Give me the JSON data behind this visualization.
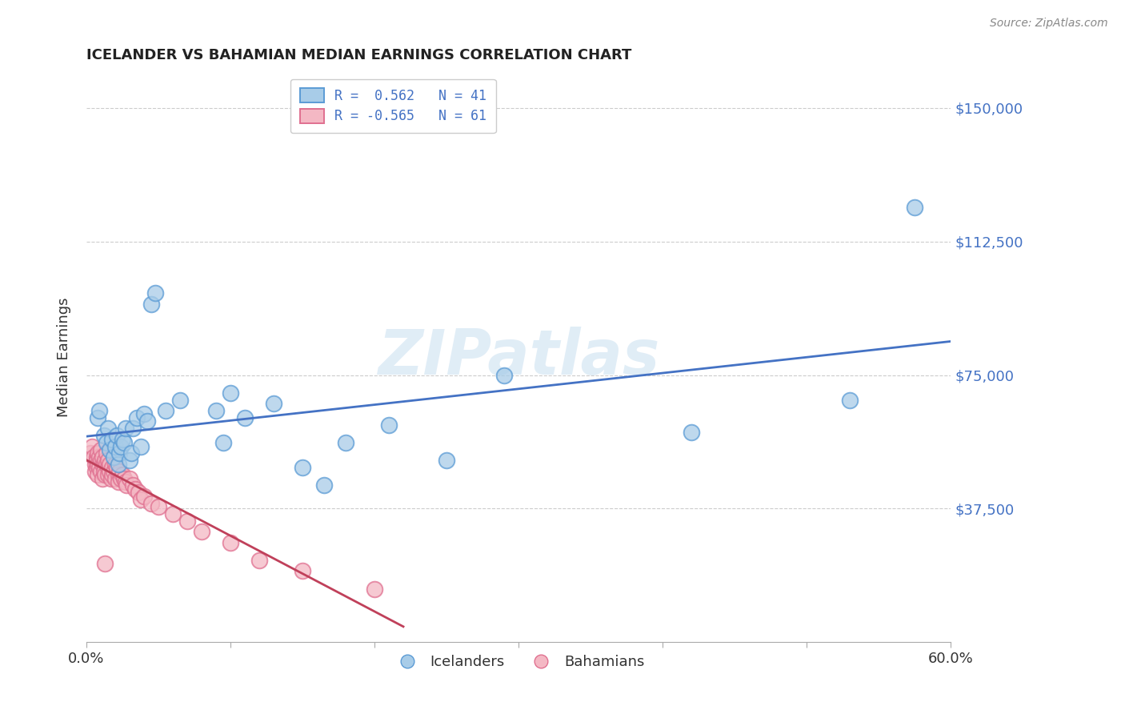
{
  "title": "ICELANDER VS BAHAMIAN MEDIAN EARNINGS CORRELATION CHART",
  "source": "Source: ZipAtlas.com",
  "ylabel": "Median Earnings",
  "ytick_labels": [
    "$37,500",
    "$75,000",
    "$112,500",
    "$150,000"
  ],
  "ytick_values": [
    37500,
    75000,
    112500,
    150000
  ],
  "ylim": [
    0,
    160000
  ],
  "xlim": [
    0.0,
    0.6
  ],
  "legend_r1": "R =  0.562   N = 41",
  "legend_r2": "R = -0.565   N = 61",
  "blue_scatter_face": "#a8cce8",
  "blue_scatter_edge": "#5b9bd5",
  "pink_scatter_face": "#f4b8c4",
  "pink_scatter_edge": "#e07090",
  "blue_line_color": "#4472c4",
  "pink_line_color": "#c0405a",
  "watermark": "ZIPatlas",
  "icelanders_x": [
    0.008,
    0.009,
    0.012,
    0.014,
    0.015,
    0.016,
    0.018,
    0.019,
    0.02,
    0.021,
    0.022,
    0.023,
    0.024,
    0.025,
    0.026,
    0.027,
    0.03,
    0.031,
    0.032,
    0.035,
    0.038,
    0.04,
    0.042,
    0.045,
    0.048,
    0.055,
    0.065,
    0.09,
    0.095,
    0.1,
    0.11,
    0.13,
    0.15,
    0.165,
    0.18,
    0.21,
    0.25,
    0.29,
    0.42,
    0.53,
    0.575
  ],
  "icelanders_y": [
    63000,
    65000,
    58000,
    56000,
    60000,
    54000,
    57000,
    52000,
    55000,
    58000,
    50000,
    53000,
    55000,
    57000,
    56000,
    60000,
    51000,
    53000,
    60000,
    63000,
    55000,
    64000,
    62000,
    95000,
    98000,
    65000,
    68000,
    65000,
    56000,
    70000,
    63000,
    67000,
    49000,
    44000,
    56000,
    61000,
    51000,
    75000,
    59000,
    68000,
    122000
  ],
  "bahamians_x": [
    0.003,
    0.004,
    0.005,
    0.006,
    0.006,
    0.007,
    0.007,
    0.007,
    0.008,
    0.008,
    0.008,
    0.009,
    0.009,
    0.01,
    0.01,
    0.01,
    0.011,
    0.011,
    0.011,
    0.012,
    0.012,
    0.013,
    0.013,
    0.014,
    0.014,
    0.015,
    0.015,
    0.015,
    0.016,
    0.016,
    0.017,
    0.018,
    0.018,
    0.019,
    0.02,
    0.02,
    0.021,
    0.022,
    0.022,
    0.023,
    0.024,
    0.025,
    0.026,
    0.027,
    0.028,
    0.03,
    0.032,
    0.034,
    0.036,
    0.038,
    0.04,
    0.045,
    0.05,
    0.06,
    0.07,
    0.08,
    0.1,
    0.12,
    0.15,
    0.2,
    0.013
  ],
  "bahamians_y": [
    53000,
    55000,
    52000,
    50000,
    48000,
    52000,
    49000,
    51000,
    50000,
    53000,
    47000,
    49000,
    52000,
    51000,
    48000,
    54000,
    50000,
    52000,
    46000,
    50000,
    48000,
    51000,
    47000,
    50000,
    53000,
    49000,
    47000,
    51000,
    48000,
    50000,
    46000,
    49000,
    47000,
    48000,
    50000,
    46000,
    49000,
    47000,
    45000,
    48000,
    46000,
    47000,
    46000,
    45000,
    44000,
    46000,
    44000,
    43000,
    42000,
    40000,
    41000,
    39000,
    38000,
    36000,
    34000,
    31000,
    28000,
    23000,
    20000,
    15000,
    22000
  ]
}
